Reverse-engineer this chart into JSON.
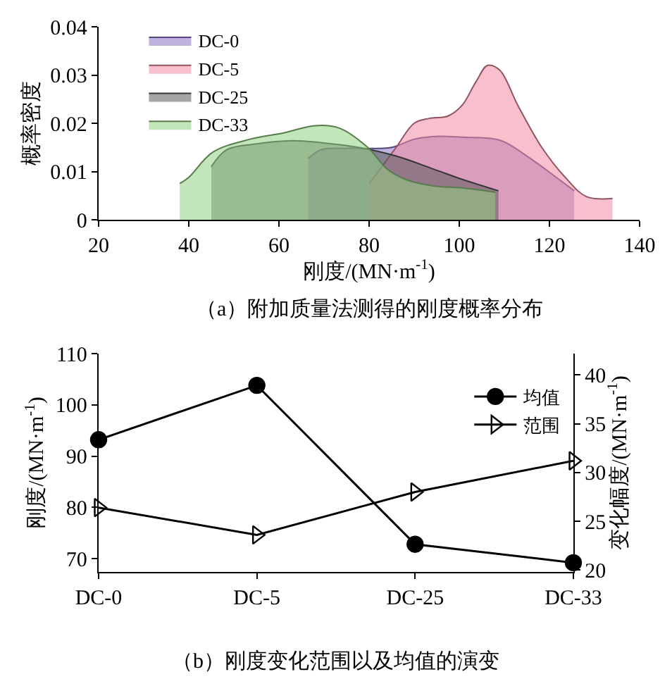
{
  "chart_data": [
    {
      "type": "area",
      "xlabel": "刚度/(MN·m$^{-1}$)",
      "ylabel": "概率密度",
      "annotations": [
        "（a）附加质量法测得的刚度概率分布"
      ],
      "xlim": [
        20,
        140
      ],
      "xticks": [
        20,
        40,
        60,
        80,
        100,
        120,
        140
      ],
      "ylim": [
        0,
        0.04
      ],
      "yticks": [
        0,
        0.01,
        0.02,
        0.03,
        0.04
      ],
      "grid": false,
      "legend": "top left",
      "series": [
        {
          "name": "DC-0",
          "color": "#8b72c9",
          "x": [
            66.5,
            69.3,
            75.5,
            85,
            90,
            95.4,
            100.6,
            109,
            115,
            121.5,
            125.5
          ],
          "values": [
            0.0127,
            0.0145,
            0.0148,
            0.015,
            0.0167,
            0.0173,
            0.0171,
            0.0165,
            0.0132,
            0.0088,
            0.006
          ]
        },
        {
          "name": "DC-5",
          "color": "#f28ca2",
          "x": [
            80,
            81.8,
            86,
            90,
            93.3,
            97.5,
            100.6,
            103.7,
            106.3,
            109,
            113,
            118.3,
            123.5,
            128.2,
            134
          ],
          "values": [
            0.0075,
            0.0097,
            0.015,
            0.02,
            0.021,
            0.0215,
            0.0237,
            0.0286,
            0.032,
            0.031,
            0.0237,
            0.015,
            0.0088,
            0.0048,
            0.0044
          ]
        },
        {
          "name": "DC-25",
          "color": "#5a5a5a",
          "x": [
            45,
            48.4,
            54.7,
            63,
            69.3,
            77.6,
            86,
            94.3,
            100.6,
            108.7
          ],
          "values": [
            0.011,
            0.0145,
            0.0157,
            0.0164,
            0.016,
            0.015,
            0.0132,
            0.0105,
            0.0084,
            0.006
          ]
        },
        {
          "name": "DC-33",
          "color": "#92cf82",
          "x": [
            38,
            40,
            45.3,
            53.6,
            61,
            68,
            73.4,
            79.7,
            84,
            88,
            94.3,
            100.6,
            108
          ],
          "values": [
            0.0075,
            0.0088,
            0.014,
            0.0167,
            0.018,
            0.0195,
            0.019,
            0.015,
            0.0105,
            0.0084,
            0.007,
            0.0066,
            0.0057
          ]
        }
      ]
    },
    {
      "type": "line",
      "categories": [
        "DC-0",
        "DC-5",
        "DC-25",
        "DC-33"
      ],
      "ylabel": "刚度/(MN·m$^{-1}$)",
      "y2label": "变化幅度/(MN·m$^{-1}$)",
      "annotations": [
        "（b）刚度变化范围以及均值的演变"
      ],
      "ylim": [
        67.4,
        110
      ],
      "yticks": [
        70,
        80,
        90,
        100,
        110
      ],
      "y2lim": [
        19.8,
        42.2
      ],
      "y2ticks": [
        20,
        25,
        30,
        35,
        40
      ],
      "grid": false,
      "legend": "top right",
      "series": [
        {
          "name": "均值",
          "color": "#000000",
          "marker": "circle",
          "values": [
            93.2,
            103.8,
            72.8,
            69.2
          ]
        },
        {
          "name": "范围",
          "color": "#000000",
          "marker": "triangle",
          "axis": "y2",
          "values": [
            26.4,
            23.6,
            28.0,
            31.2
          ]
        }
      ]
    }
  ]
}
